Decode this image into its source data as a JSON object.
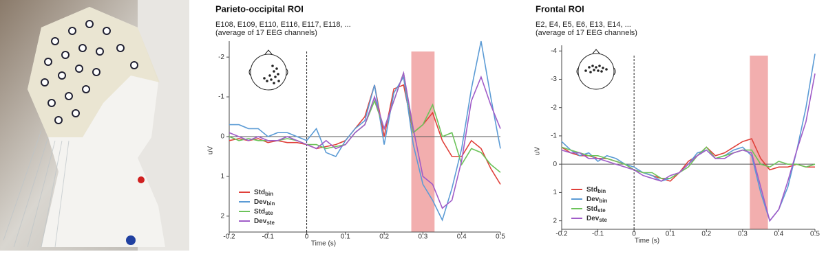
{
  "chart_data": [
    {
      "type": "line",
      "title": "Parieto-occipital ROI",
      "subtitle": [
        "E108, E109, E110, E116, E117, E118, ...",
        "(average of 17 EEG channels)"
      ],
      "xlabel": "Time (s)",
      "ylabel": "uV",
      "y_inverted": true,
      "x": [
        -0.2,
        -0.175,
        -0.15,
        -0.125,
        -0.1,
        -0.075,
        -0.05,
        -0.025,
        0,
        0.025,
        0.05,
        0.075,
        0.1,
        0.125,
        0.15,
        0.175,
        0.2,
        0.225,
        0.25,
        0.275,
        0.3,
        0.325,
        0.35,
        0.375,
        0.4,
        0.425,
        0.45,
        0.475,
        0.5
      ],
      "xlim": [
        -0.2,
        0.5
      ],
      "xticks": [
        -0.2,
        -0.1,
        0,
        0.1,
        0.2,
        0.3,
        0.4,
        0.5
      ],
      "ylim": [
        -2.4,
        2.4
      ],
      "yticks": [
        -2,
        -1,
        0,
        1,
        2
      ],
      "highlight": [
        0.27,
        0.33
      ],
      "highlight_color": "#f0a0a0",
      "vline": 0,
      "legend": "lower left",
      "series": [
        {
          "name": "Std",
          "name_sub": "bin",
          "color": "#e0403a",
          "values": [
            0.1,
            0.05,
            0.1,
            0.05,
            0.15,
            0.1,
            0.15,
            0.15,
            0.2,
            0.3,
            0.25,
            0.2,
            0.1,
            -0.2,
            -0.5,
            -1.3,
            0.0,
            -1.2,
            -1.3,
            -0.1,
            -0.3,
            -0.6,
            0.1,
            0.5,
            0.5,
            0.1,
            0.3,
            0.8,
            1.2
          ]
        },
        {
          "name": "Dev",
          "name_sub": "bin",
          "color": "#5b9bd5",
          "values": [
            -0.3,
            -0.3,
            -0.2,
            -0.2,
            0.0,
            -0.1,
            -0.1,
            0.0,
            0.1,
            -0.2,
            0.4,
            0.5,
            0.1,
            -0.2,
            -0.4,
            -1.3,
            0.2,
            -1.1,
            -1.5,
            0.2,
            1.2,
            1.6,
            2.1,
            1.3,
            0.3,
            -1.2,
            -2.4,
            -1.0,
            0.3
          ]
        },
        {
          "name": "Std",
          "name_sub": "ste",
          "color": "#6cc35a",
          "values": [
            0.0,
            0.1,
            0.05,
            0.1,
            0.1,
            0.1,
            0.05,
            0.1,
            0.2,
            0.2,
            0.3,
            0.25,
            0.2,
            -0.1,
            -0.3,
            -0.9,
            -0.2,
            -0.9,
            -1.6,
            -0.1,
            -0.3,
            -0.8,
            0.0,
            -0.1,
            0.7,
            0.3,
            0.4,
            0.7,
            0.9
          ]
        },
        {
          "name": "Dev",
          "name_sub": "ste",
          "color": "#a05cc8",
          "values": [
            -0.1,
            0.0,
            0.1,
            0.0,
            0.1,
            0.1,
            0.0,
            0.1,
            0.2,
            0.3,
            0.1,
            0.3,
            0.2,
            -0.1,
            -0.3,
            -1.0,
            -0.2,
            -0.9,
            -1.6,
            -0.2,
            1.0,
            1.2,
            1.8,
            1.6,
            0.6,
            -0.9,
            -1.5,
            -0.8,
            -0.2
          ]
        }
      ]
    },
    {
      "type": "line",
      "title": "Frontal ROI",
      "subtitle": [
        "E2, E4, E5, E6, E13, E14, ...",
        "(average of 17 EEG channels)"
      ],
      "xlabel": "Time (s)",
      "ylabel": "uV",
      "y_inverted": true,
      "x": [
        -0.2,
        -0.175,
        -0.15,
        -0.125,
        -0.1,
        -0.075,
        -0.05,
        -0.025,
        0,
        0.025,
        0.05,
        0.075,
        0.1,
        0.125,
        0.15,
        0.175,
        0.2,
        0.225,
        0.25,
        0.275,
        0.3,
        0.325,
        0.35,
        0.375,
        0.4,
        0.425,
        0.45,
        0.475,
        0.5
      ],
      "xlim": [
        -0.2,
        0.5
      ],
      "xticks": [
        -0.2,
        -0.1,
        0,
        0.1,
        0.2,
        0.3,
        0.4,
        0.5
      ],
      "ylim": [
        -4.2,
        2.3
      ],
      "yticks": [
        -4,
        -3,
        -2,
        -1,
        0,
        1,
        2
      ],
      "highlight": [
        0.32,
        0.37
      ],
      "highlight_color": "#f0a0a0",
      "vline": 0,
      "legend": "lower left",
      "series": [
        {
          "name": "Std",
          "name_sub": "bin",
          "color": "#e0403a",
          "values": [
            -0.6,
            -0.4,
            -0.3,
            -0.3,
            -0.2,
            -0.2,
            -0.1,
            0.0,
            0.2,
            0.3,
            0.4,
            0.5,
            0.6,
            0.3,
            -0.1,
            -0.3,
            -0.6,
            -0.3,
            -0.4,
            -0.6,
            -0.8,
            -0.9,
            -0.2,
            0.2,
            0.1,
            0.1,
            0.0,
            0.1,
            0.1
          ]
        },
        {
          "name": "Dev",
          "name_sub": "bin",
          "color": "#5b9bd5",
          "values": [
            -0.8,
            -0.5,
            -0.3,
            -0.4,
            -0.1,
            -0.3,
            -0.2,
            0.0,
            0.1,
            0.3,
            0.4,
            0.6,
            0.5,
            0.3,
            0.0,
            -0.4,
            -0.5,
            -0.2,
            -0.3,
            -0.5,
            -0.6,
            -0.3,
            1.0,
            2.0,
            1.6,
            0.8,
            -0.5,
            -2.0,
            -3.9
          ]
        },
        {
          "name": "Std",
          "name_sub": "ste",
          "color": "#6cc35a",
          "values": [
            -0.6,
            -0.5,
            -0.4,
            -0.3,
            -0.3,
            -0.2,
            -0.1,
            0.0,
            0.2,
            0.3,
            0.3,
            0.5,
            0.5,
            0.3,
            0.1,
            -0.3,
            -0.6,
            -0.2,
            -0.3,
            -0.4,
            -0.5,
            -0.5,
            0.0,
            0.1,
            -0.1,
            0.0,
            0.0,
            0.1,
            0.0
          ]
        },
        {
          "name": "Dev",
          "name_sub": "ste",
          "color": "#a05cc8",
          "values": [
            -0.5,
            -0.4,
            -0.4,
            -0.2,
            -0.2,
            -0.1,
            0.0,
            0.1,
            0.2,
            0.4,
            0.5,
            0.6,
            0.4,
            0.3,
            0.0,
            -0.3,
            -0.5,
            -0.2,
            -0.2,
            -0.4,
            -0.5,
            -0.4,
            0.8,
            2.0,
            1.6,
            0.6,
            -0.5,
            -1.5,
            -3.2
          ]
        }
      ]
    }
  ]
}
